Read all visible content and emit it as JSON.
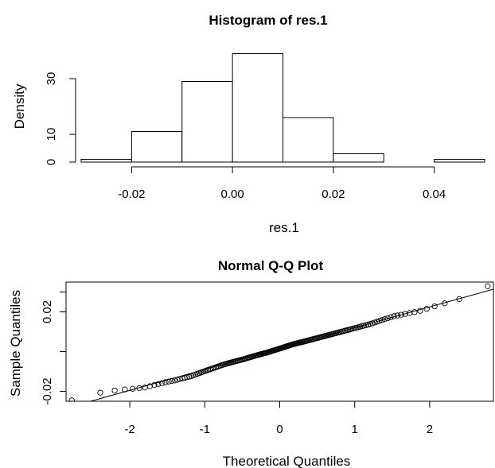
{
  "chart_data": [
    {
      "type": "bar",
      "title": "Histogram of res.1",
      "xlabel": "res.1",
      "ylabel": "Density",
      "bin_edges": [
        -0.03,
        -0.02,
        -0.01,
        0.0,
        0.01,
        0.02,
        0.03,
        0.04,
        0.05
      ],
      "categories": [
        "-0.03–-0.02",
        "-0.02–-0.01",
        "-0.01–0.00",
        "0.00–0.01",
        "0.01–0.02",
        "0.02–0.03",
        "0.03–0.04",
        "0.04–0.05"
      ],
      "values": [
        1,
        11,
        29,
        39,
        16,
        3,
        0,
        1
      ],
      "xlim": [
        -0.03,
        0.05
      ],
      "ylim": [
        0,
        40
      ],
      "xticks": [
        -0.02,
        0.0,
        0.02,
        0.04
      ],
      "xtick_labels": [
        "-0.02",
        "0.00",
        "0.02",
        "0.04"
      ],
      "yticks": [
        0,
        10,
        30
      ],
      "ytick_labels": [
        "0",
        "10",
        "30"
      ]
    },
    {
      "type": "scatter",
      "title": "Normal Q-Q Plot",
      "xlabel": "Theoretical Quantiles",
      "ylabel": "Sample Quantiles",
      "n_points": 180,
      "xlim": [
        -2.85,
        2.85
      ],
      "ylim": [
        -0.025,
        0.035
      ],
      "xticks": [
        -2,
        -1,
        0,
        1,
        2
      ],
      "xtick_labels": [
        "-2",
        "-1",
        "0",
        "1",
        "2"
      ],
      "yticks": [
        -0.02,
        0.02
      ],
      "ytick_labels": [
        "-0.02",
        "0.02"
      ],
      "reference_line": {
        "slope": 0.0105,
        "intercept": 0.0015
      },
      "points": [
        [
          -2.75,
          -0.0245
        ],
        [
          -2.38,
          -0.0205
        ],
        [
          -2.18,
          -0.0195
        ],
        [
          -2.05,
          -0.019
        ],
        [
          -1.9,
          -0.0185
        ],
        [
          -1.78,
          -0.018
        ],
        [
          -1.68,
          -0.0168
        ],
        [
          -1.58,
          -0.016
        ],
        [
          -1.5,
          -0.0152
        ],
        [
          -1.42,
          -0.0147
        ],
        [
          -1.35,
          -0.014
        ],
        [
          -1.28,
          -0.0133
        ],
        [
          -1.2,
          -0.0126
        ],
        [
          -1.12,
          -0.0115
        ],
        [
          -1.04,
          -0.0104
        ],
        [
          -0.96,
          -0.0093
        ],
        [
          -0.88,
          -0.0083
        ],
        [
          -0.8,
          -0.0072
        ],
        [
          -0.72,
          -0.0062
        ],
        [
          -0.64,
          -0.0054
        ],
        [
          -0.56,
          -0.0046
        ],
        [
          -0.48,
          -0.0038
        ],
        [
          -0.4,
          -0.0029
        ],
        [
          -0.32,
          -0.002
        ],
        [
          -0.24,
          -0.0012
        ],
        [
          -0.16,
          -0.0004
        ],
        [
          -0.08,
          0.0006
        ],
        [
          0.0,
          0.0015
        ],
        [
          0.08,
          0.0025
        ],
        [
          0.16,
          0.0035
        ],
        [
          0.24,
          0.0043
        ],
        [
          0.32,
          0.005
        ],
        [
          0.4,
          0.0058
        ],
        [
          0.48,
          0.0066
        ],
        [
          0.56,
          0.0074
        ],
        [
          0.64,
          0.0082
        ],
        [
          0.72,
          0.009
        ],
        [
          0.8,
          0.0098
        ],
        [
          0.88,
          0.0106
        ],
        [
          0.96,
          0.0114
        ],
        [
          1.04,
          0.0122
        ],
        [
          1.12,
          0.013
        ],
        [
          1.2,
          0.0138
        ],
        [
          1.28,
          0.0148
        ],
        [
          1.36,
          0.0158
        ],
        [
          1.44,
          0.0168
        ],
        [
          1.52,
          0.0178
        ],
        [
          1.6,
          0.0184
        ],
        [
          1.68,
          0.019
        ],
        [
          1.76,
          0.0196
        ],
        [
          1.84,
          0.0202
        ],
        [
          1.92,
          0.021
        ],
        [
          2.0,
          0.022
        ],
        [
          2.1,
          0.0232
        ],
        [
          2.22,
          0.0245
        ],
        [
          2.4,
          0.0265
        ],
        [
          2.78,
          0.033
        ]
      ]
    }
  ]
}
